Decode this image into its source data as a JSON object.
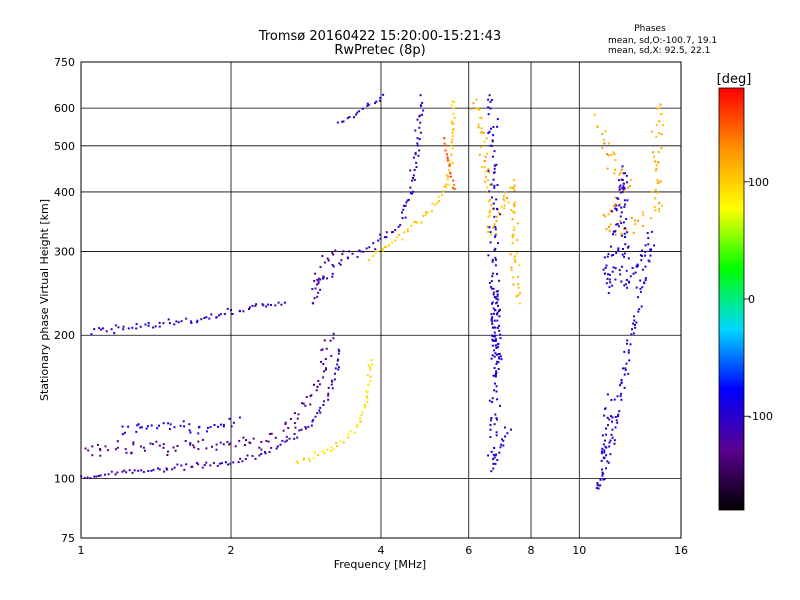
{
  "chart_data": {
    "type": "scatter",
    "title": "Tromsø 20160422 15:20:00-15:21:43",
    "subtitle": "RwPretec (8p)",
    "xlabel": "Frequency [MHz]",
    "ylabel": "Stationary phase Virtual Height [km]",
    "xscale": "log",
    "yscale": "log",
    "xlim": [
      1,
      16
    ],
    "ylim": [
      75,
      750
    ],
    "x_ticks": [
      "1",
      "2",
      "4",
      "6",
      "8",
      "10",
      "16"
    ],
    "x_tick_values": [
      1,
      2,
      4,
      6,
      8,
      10,
      16
    ],
    "y_ticks": [
      "75",
      "100",
      "200",
      "300",
      "400",
      "500",
      "600",
      "750"
    ],
    "y_tick_values": [
      75,
      100,
      200,
      300,
      400,
      500,
      600,
      750
    ],
    "grid": true,
    "phases_header": "Phases",
    "phases_lines": [
      "mean, sd,O:-100.7, 19.1",
      "mean, sd,X:  92.5, 22.1"
    ],
    "colorbar": {
      "label": "[deg]",
      "range": [
        -180,
        180
      ],
      "tick_labels": [
        "100",
        "0",
        "-100"
      ],
      "tick_values": [
        100,
        0,
        -100
      ],
      "stops": [
        "#000000",
        "#5a0090",
        "#0000ff",
        "#00d8ff",
        "#00ff00",
        "#ffff00",
        "#ff9000",
        "#ff0000"
      ]
    },
    "traces": [
      {
        "name": "",
        "phase": -110,
        "jitter": 0.02,
        "points": [
          [
            1.0,
            100
          ],
          [
            1.2,
            103
          ],
          [
            1.5,
            105
          ],
          [
            1.8,
            107
          ],
          [
            2.0,
            108
          ],
          [
            2.3,
            112
          ],
          [
            2.6,
            120
          ],
          [
            2.9,
            130
          ],
          [
            3.1,
            145
          ],
          [
            3.25,
            165
          ],
          [
            3.3,
            190
          ]
        ]
      },
      {
        "name": "",
        "phase": -130,
        "jitter": 0.06,
        "points": [
          [
            1.0,
            115
          ],
          [
            1.3,
            117
          ],
          [
            1.6,
            118
          ],
          [
            2.0,
            118
          ],
          [
            2.3,
            120
          ],
          [
            2.6,
            128
          ],
          [
            2.8,
            145
          ],
          [
            3.0,
            160
          ],
          [
            3.1,
            185
          ],
          [
            3.2,
            205
          ]
        ]
      },
      {
        "name": "",
        "phase": -95,
        "jitter": 0.04,
        "points": [
          [
            1.2,
            128
          ],
          [
            1.5,
            130
          ],
          [
            1.8,
            128
          ],
          [
            2.1,
            132
          ]
        ]
      },
      {
        "name": "",
        "phase": -105,
        "jitter": 0.03,
        "points": [
          [
            1.05,
            204
          ],
          [
            1.3,
            208
          ],
          [
            1.6,
            213
          ],
          [
            1.8,
            218
          ],
          [
            2.0,
            222
          ],
          [
            2.3,
            230
          ],
          [
            2.6,
            235
          ]
        ]
      },
      {
        "name": "",
        "phase": -110,
        "jitter": 0.035,
        "points": [
          [
            2.9,
            255
          ],
          [
            3.1,
            265
          ],
          [
            3.3,
            285
          ],
          [
            3.6,
            300
          ],
          [
            3.9,
            310
          ],
          [
            4.2,
            330
          ],
          [
            4.4,
            350
          ],
          [
            4.6,
            400
          ],
          [
            4.7,
            460
          ],
          [
            4.75,
            530
          ],
          [
            4.8,
            580
          ],
          [
            4.82,
            640
          ]
        ]
      },
      {
        "name": "",
        "phase": -125,
        "jitter": 0.05,
        "points": [
          [
            2.95,
            230
          ],
          [
            3.0,
            270
          ],
          [
            3.1,
            290
          ],
          [
            3.25,
            300
          ],
          [
            3.4,
            295
          ]
        ]
      },
      {
        "name": "",
        "phase": -100,
        "jitter": 0.02,
        "points": [
          [
            3.3,
            560
          ],
          [
            3.6,
            590
          ],
          [
            3.9,
            620
          ],
          [
            4.1,
            640
          ]
        ]
      },
      {
        "name": "",
        "phase": 95,
        "jitter": 0.025,
        "points": [
          [
            2.7,
            108
          ],
          [
            3.0,
            112
          ],
          [
            3.3,
            118
          ],
          [
            3.6,
            128
          ],
          [
            3.75,
            145
          ],
          [
            3.8,
            165
          ],
          [
            3.85,
            180
          ]
        ]
      },
      {
        "name": "",
        "phase": 100,
        "jitter": 0.025,
        "points": [
          [
            3.8,
            290
          ],
          [
            4.0,
            300
          ],
          [
            4.3,
            318
          ],
          [
            4.6,
            338
          ],
          [
            4.9,
            358
          ],
          [
            5.2,
            380
          ],
          [
            5.4,
            410
          ],
          [
            5.5,
            450
          ],
          [
            5.55,
            500
          ],
          [
            5.58,
            560
          ],
          [
            5.6,
            630
          ]
        ]
      },
      {
        "name": "",
        "phase": 150,
        "jitter": 0.02,
        "points": [
          [
            5.35,
            520
          ],
          [
            5.45,
            470
          ],
          [
            5.55,
            430
          ],
          [
            5.6,
            400
          ]
        ]
      },
      {
        "name": "",
        "phase": 110,
        "jitter": 0.05,
        "points": [
          [
            6.1,
            620
          ],
          [
            6.3,
            590
          ],
          [
            6.4,
            520
          ],
          [
            6.5,
            450
          ],
          [
            6.6,
            380
          ],
          [
            6.7,
            330
          ],
          [
            7.3,
            420
          ],
          [
            7.4,
            300
          ],
          [
            7.6,
            230
          ]
        ]
      },
      {
        "name": "",
        "phase": -100,
        "jitter": 0.06,
        "points": [
          [
            6.6,
            640
          ],
          [
            6.7,
            560
          ],
          [
            6.8,
            200
          ],
          [
            6.9,
            170
          ],
          [
            6.8,
            250
          ],
          [
            6.7,
            105
          ],
          [
            7.3,
            130
          ]
        ]
      },
      {
        "name": "",
        "phase": 115,
        "jitter": 0.07,
        "points": [
          [
            11.0,
            560
          ],
          [
            11.4,
            500
          ],
          [
            11.8,
            450
          ],
          [
            12.5,
            420
          ],
          [
            11.2,
            350
          ],
          [
            12.0,
            330
          ],
          [
            14.2,
            360
          ],
          [
            14.5,
            610
          ]
        ]
      },
      {
        "name": "",
        "phase": -100,
        "jitter": 0.06,
        "points": [
          [
            11.3,
            290
          ],
          [
            11.5,
            250
          ],
          [
            12.2,
            450
          ],
          [
            12.4,
            250
          ],
          [
            14.0,
            320
          ],
          [
            11.0,
            95
          ],
          [
            11.6,
            150
          ]
        ]
      }
    ]
  }
}
